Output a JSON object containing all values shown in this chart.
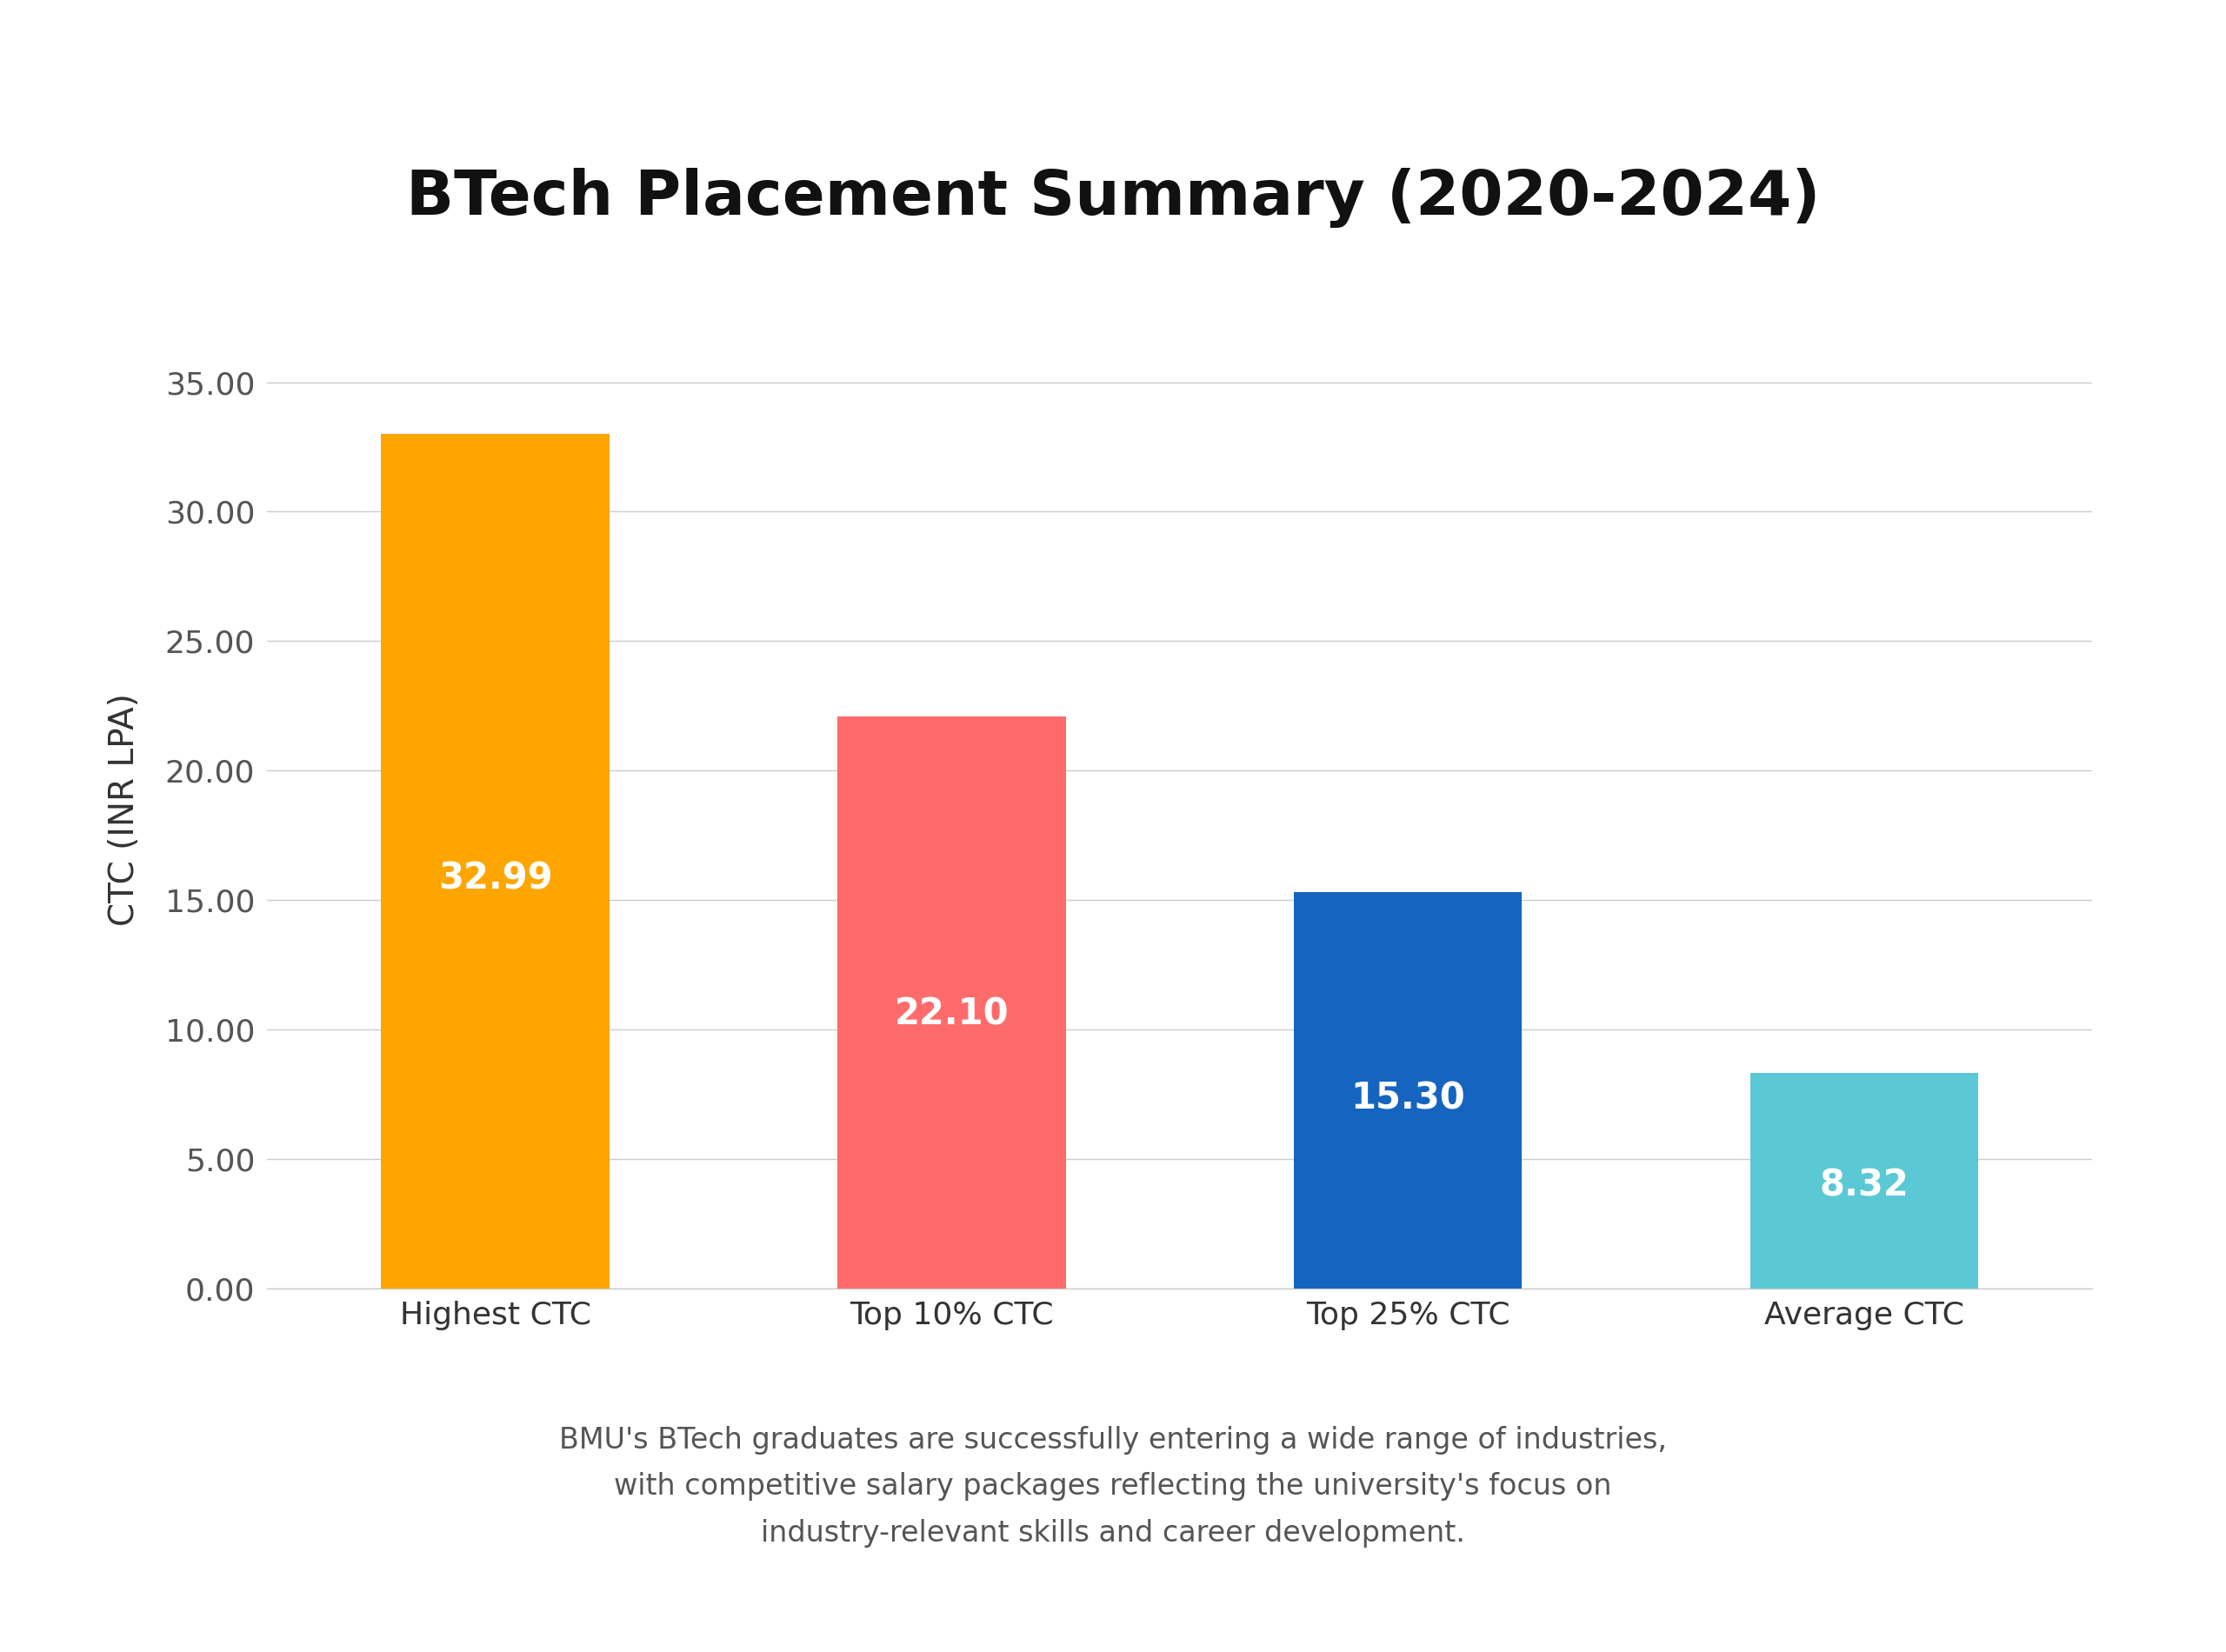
{
  "title": "BTech Placement Summary (2020-2024)",
  "categories": [
    "Highest CTC",
    "Top 10% CTC",
    "Top 25% CTC",
    "Average CTC"
  ],
  "values": [
    32.99,
    22.1,
    15.3,
    8.32
  ],
  "bar_colors": [
    "#FFA500",
    "#FF6B6B",
    "#1565C0",
    "#5BC8D5"
  ],
  "ylabel": "CTC (INR LPA)",
  "ylim": [
    0,
    37
  ],
  "yticks": [
    0.0,
    5.0,
    10.0,
    15.0,
    20.0,
    25.0,
    30.0,
    35.0
  ],
  "label_color": "#FFFFFF",
  "background_color": "#FFFFFF",
  "subtitle": "BMU's BTech graduates are successfully entering a wide range of industries,\nwith competitive salary packages reflecting the university's focus on\nindustry-relevant skills and career development.",
  "title_fontsize": 52,
  "ylabel_fontsize": 28,
  "tick_fontsize": 26,
  "bar_label_fontsize": 30,
  "subtitle_fontsize": 24
}
